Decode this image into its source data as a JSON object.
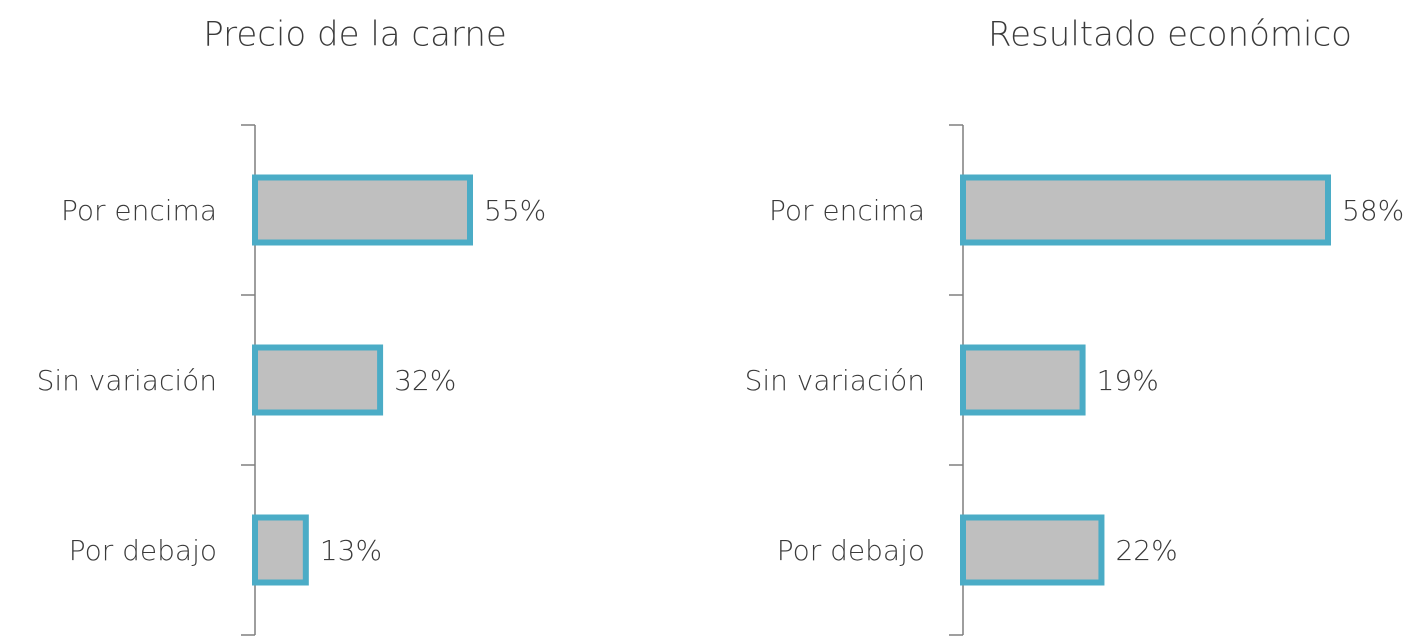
{
  "chart_data": [
    {
      "type": "bar",
      "orientation": "horizontal",
      "title": "Precio de la carne",
      "categories": [
        "Por encima",
        "Sin variación",
        "Por debajo"
      ],
      "values": [
        55,
        32,
        13
      ],
      "value_labels": [
        "55%",
        "32%",
        "13%"
      ],
      "color": "#bfbfbf",
      "edge_color": "#4bacc6"
    },
    {
      "type": "bar",
      "orientation": "horizontal",
      "title": "Resultado económico",
      "categories": [
        "Por encima",
        "Sin variación",
        "Por debajo"
      ],
      "values": [
        58,
        19,
        22
      ],
      "value_labels": [
        "58%",
        "19%",
        "22%"
      ],
      "color": "#bfbfbf",
      "edge_color": "#4bacc6"
    }
  ]
}
